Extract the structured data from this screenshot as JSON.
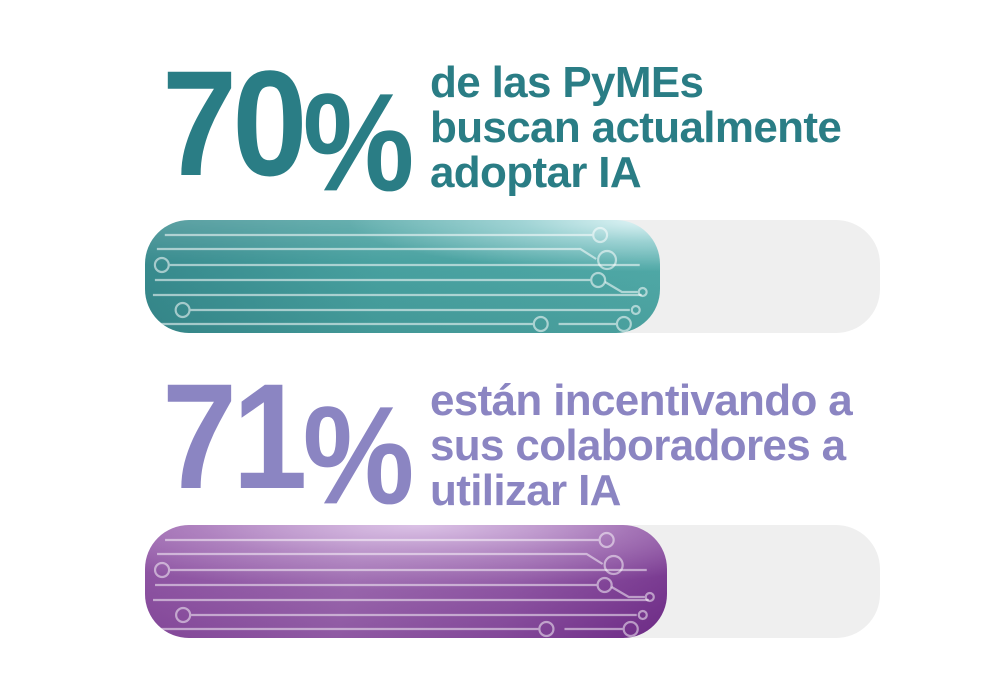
{
  "chart_data": {
    "type": "bar",
    "orientation": "horizontal",
    "categories": [
      "PyMEs que buscan actualmente adoptar IA",
      "PyMEs que están incentivando a sus colaboradores a utilizar IA"
    ],
    "values": [
      70,
      71
    ],
    "unit": "%",
    "xlim": [
      0,
      100
    ],
    "grid": false,
    "legend": "none",
    "bar_colors": [
      "#47a09f",
      "#8a4ba0"
    ],
    "track_color": "#efefef"
  },
  "stats": [
    {
      "number": "70",
      "symbol": "%",
      "percent": 70,
      "lines": [
        "de las PyMEs",
        "buscan actualmente",
        "adoptar IA"
      ],
      "text_color": "#2a7d85",
      "bar_gradient": {
        "left": "#378a8d",
        "mid": "#47a09f",
        "top_right_highlight": "#cdeef1"
      }
    },
    {
      "number": "71",
      "symbol": "%",
      "percent": 71,
      "lines": [
        "están incentivando a",
        "sus colaboradores a",
        "utilizar IA"
      ],
      "text_color": "#8b85c2",
      "bar_gradient": {
        "left": "#8a4ba0",
        "mid": "#9a63ae",
        "bottom_right": "#742f8d",
        "top_highlight": "#e9d6f2"
      }
    }
  ]
}
